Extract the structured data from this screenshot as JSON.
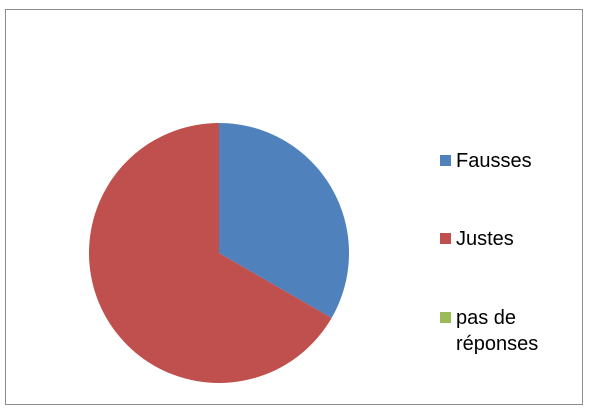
{
  "chart_data": {
    "type": "pie",
    "title": "",
    "categories": [
      "Fausses",
      "Justes",
      "pas de réponses"
    ],
    "values": [
      1,
      2,
      0
    ],
    "colors": [
      "#4F81BD",
      "#C0504D",
      "#9BBB59"
    ],
    "start_angle_deg": 0,
    "direction": "clockwise",
    "legend_position": "right"
  },
  "legend": {
    "items": [
      {
        "label": "Fausses",
        "color": "#4F81BD"
      },
      {
        "label": "Justes",
        "color": "#C0504D"
      },
      {
        "label": "pas de réponses",
        "color": "#9BBB59"
      }
    ]
  }
}
